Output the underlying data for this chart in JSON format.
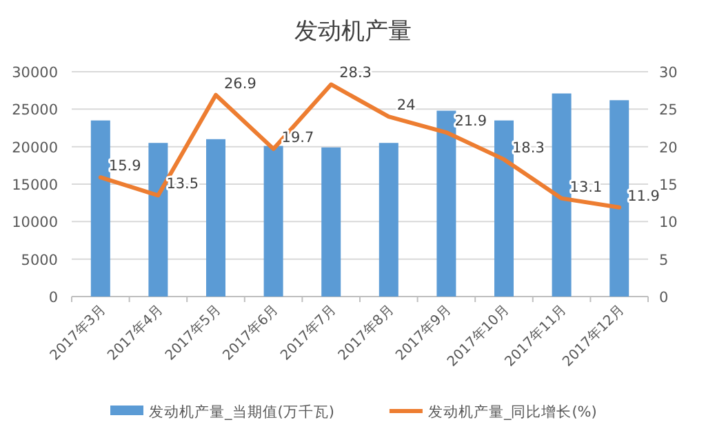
{
  "chart_data": {
    "type": "bar",
    "title": "发动机产量",
    "categories": [
      "2017年3月",
      "2017年4月",
      "2017年5月",
      "2017年6月",
      "2017年7月",
      "2017年8月",
      "2017年9月",
      "2017年10月",
      "2017年11月",
      "2017年12月"
    ],
    "series": [
      {
        "name": "发动机产量_当期值(万千瓦)",
        "color": "#5b9bd5",
        "values": [
          23500,
          20500,
          21000,
          20100,
          19900,
          20500,
          24800,
          23500,
          27100,
          26200
        ]
      },
      {
        "name": "发动机产量_同比增长(%)",
        "type": "line",
        "axis": "y2",
        "color": "#ed7d31",
        "values": [
          15.9,
          13.5,
          26.9,
          19.7,
          28.3,
          24,
          21.9,
          18.3,
          13.1,
          11.9
        ],
        "value_labels": [
          "15.9",
          "13.5",
          "26.9",
          "19.7",
          "28.3",
          "24",
          "21.9",
          "18.3",
          "13.1",
          "11.9"
        ]
      }
    ],
    "ylim": [
      0,
      30000
    ],
    "yticks": [
      0,
      5000,
      10000,
      15000,
      20000,
      25000,
      30000
    ],
    "y2lim": [
      0,
      30
    ],
    "y2ticks": [
      0,
      5,
      10,
      15,
      20,
      25,
      30
    ],
    "grid": "y",
    "legend": "bottom"
  }
}
